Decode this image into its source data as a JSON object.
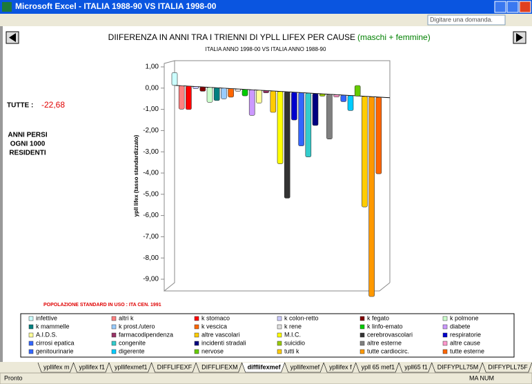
{
  "window": {
    "title": "Microsoft Excel - ITALIA 1988-90 VS ITALIA 1998-00",
    "help": "Digitare una domanda."
  },
  "side": {
    "total_label": "TUTTE :",
    "total_value": "-22,68",
    "note": [
      "ANNI PERSI",
      "OGNI 1000",
      "RESIDENTI"
    ],
    "population": "POPOLAZIONE STANDARD  IN USO : ITA CEN. 1991"
  },
  "chart_data": {
    "type": "bar",
    "title": "DIIFERENZA IN ANNI TRA I TRIENNI DI YPLL LIFEX PER CAUSE",
    "title_suffix": "(maschi + femmine)",
    "subtitle": "ITALIA ANNO 1998-00 VS ITALIA ANNO 1988-90",
    "y_label": "ypll lifex (tasso standardizzato)",
    "categories": [
      "infettive",
      "altri k",
      "k stomaco",
      "k colon-retto",
      "k fegato",
      "k polmone",
      "k mammelle",
      "k prost./utero",
      "k vescica",
      "k rene",
      "k linfo-emato",
      "diabete",
      "A.I.D.S.",
      "farmacodipendenza",
      "altre vascolari",
      "M.I.C.",
      "cerebrovascolari",
      "respiratorie",
      "cirrosi epatica",
      "congenite",
      "incidenti stradali",
      "suicidio",
      "altre esterne",
      "altre cause",
      "genitourinarie",
      "digerente",
      "nervose",
      "tutti k",
      "tutte cardiocirc.",
      "tutte esterne"
    ],
    "values": [
      0.6,
      -1.1,
      -1.1,
      -0.1,
      -0.2,
      -0.7,
      -0.6,
      -0.5,
      -0.4,
      -0.1,
      -0.3,
      -1.2,
      -0.6,
      -0.1,
      -1.0,
      -3.4,
      -5.0,
      -1.3,
      -2.5,
      -3.0,
      -1.5,
      -0.1,
      -2.1,
      -0.1,
      -0.3,
      -0.7,
      0.5,
      -5.2,
      -9.4,
      -3.6
    ],
    "colors": [
      "#ccffff",
      "#ff8080",
      "#ff0000",
      "#ccccff",
      "#800000",
      "#ccffcc",
      "#008080",
      "#99ccff",
      "#ff6600",
      "#e0e0e0",
      "#00cc00",
      "#cc99ff",
      "#ffff99",
      "#993366",
      "#ffcc00",
      "#ffff00",
      "#333333",
      "#0000cc",
      "#3366ff",
      "#33cccc",
      "#000080",
      "#99cc00",
      "#808080",
      "#ff99cc",
      "#3366ff",
      "#00ccff",
      "#66cc00",
      "#ffcc00",
      "#ff9900",
      "#ff6600"
    ],
    "ylim": [
      -9,
      1
    ],
    "yticks": [
      {
        "value": 1,
        "label": "1,00"
      },
      {
        "value": 0,
        "label": "0,00"
      },
      {
        "value": -1,
        "label": "-1,00"
      },
      {
        "value": -2,
        "label": "-2,00"
      },
      {
        "value": -3,
        "label": "-3,00"
      },
      {
        "value": -4,
        "label": "-4,00"
      },
      {
        "value": -5,
        "label": "-5,00"
      },
      {
        "value": -6,
        "label": "-6,00"
      },
      {
        "value": -7,
        "label": "-7,00"
      },
      {
        "value": -8,
        "label": "-8,00"
      },
      {
        "value": -9,
        "label": "-9,00"
      }
    ]
  },
  "sheet_tabs": [
    "ypllifex m",
    "ypllifex f1",
    "ypllifexmef1",
    "DIFFLIFEXF",
    "DIFFLIFEXM",
    "difflifexmef",
    "ypllifexmef",
    "ypllifex f",
    "ypll 65 mef1",
    "ypll65 f1",
    "DIFFYPLL75M",
    "DIFFYPLL75F"
  ],
  "active_tab": 5,
  "status": {
    "left": "Pronto",
    "right": "MA  NUM"
  }
}
